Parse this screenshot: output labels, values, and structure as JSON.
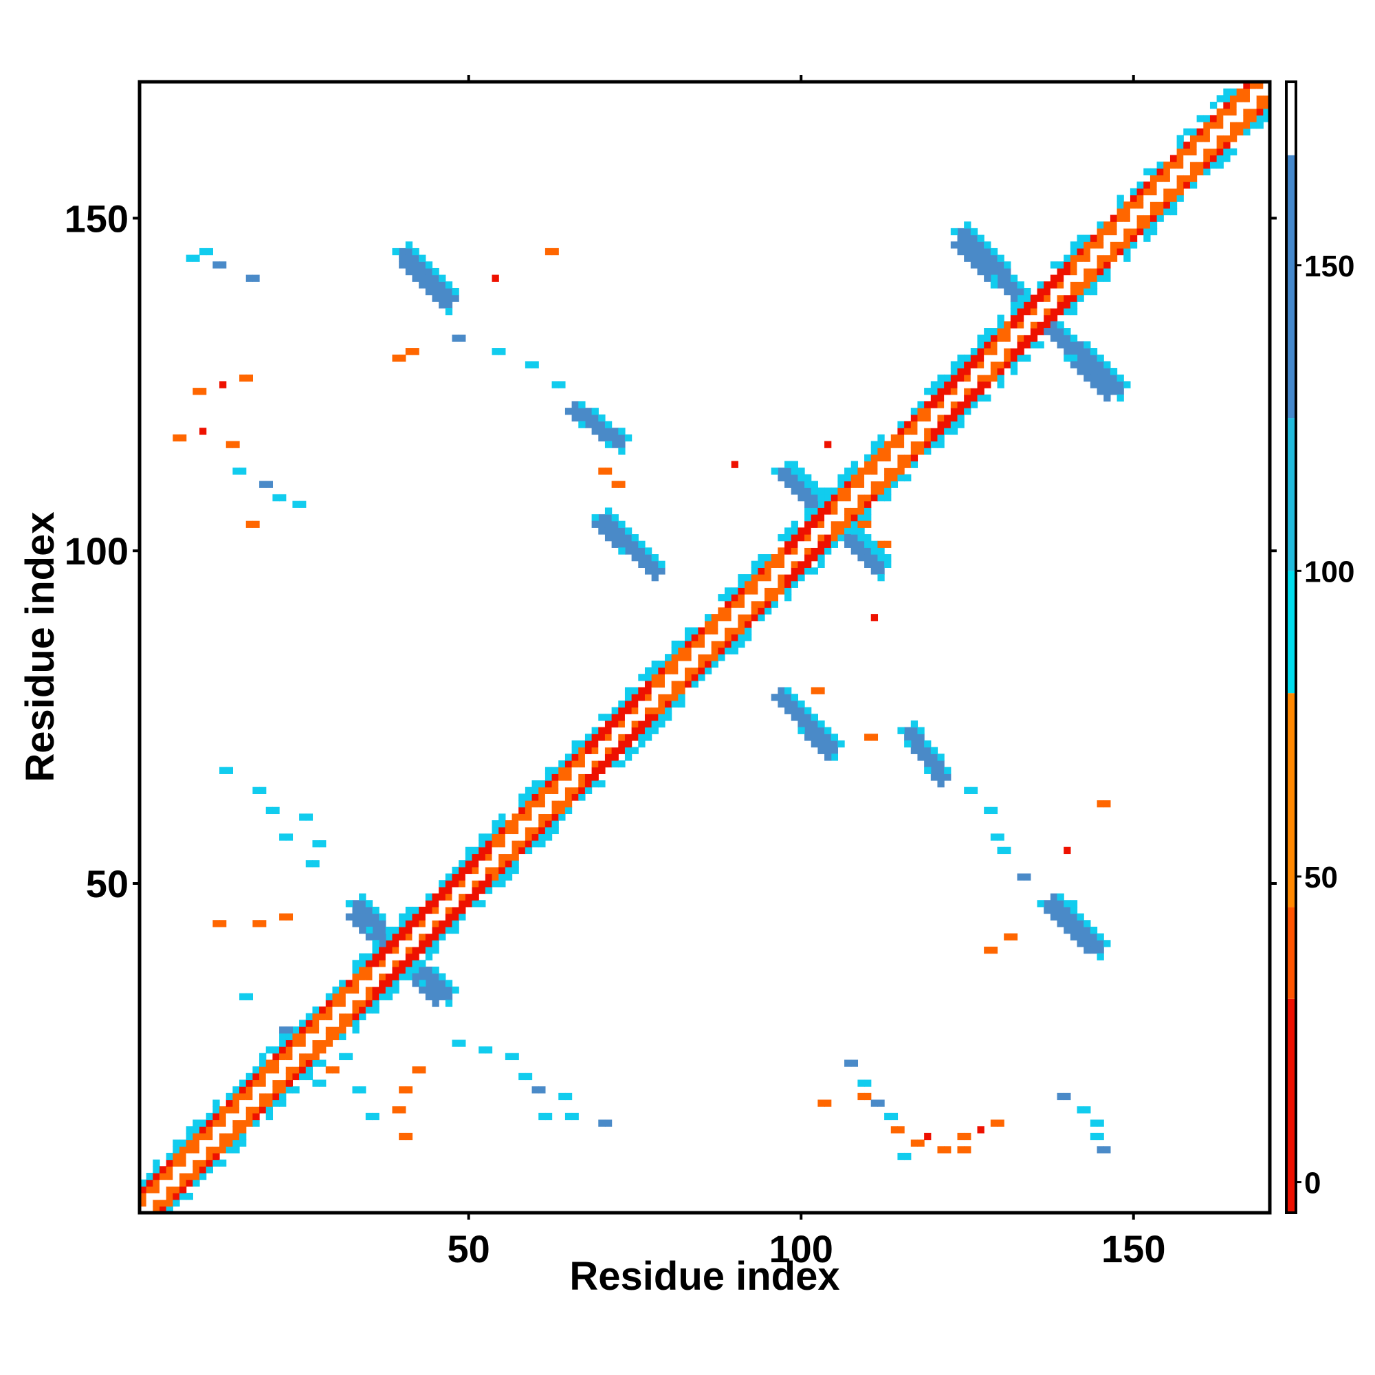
{
  "chart_data": {
    "type": "heatmap",
    "title": "",
    "xlabel": "Residue index",
    "ylabel": "Residue index",
    "xlim": [
      1,
      170
    ],
    "ylim": [
      1,
      170
    ],
    "x_ticks": [
      "50",
      "100",
      "150"
    ],
    "y_ticks": [
      "50",
      "100",
      "150"
    ],
    "colorbar": {
      "ticks": [
        "0",
        "50",
        "100",
        "150"
      ],
      "range": [
        -5,
        180
      ],
      "bands": [
        {
          "from": -5,
          "to": 30,
          "color": "#ee1100"
        },
        {
          "from": 30,
          "to": 45,
          "color": "#ff5500"
        },
        {
          "from": 45,
          "to": 80,
          "color": "#ff8800"
        },
        {
          "from": 80,
          "to": 100,
          "color": "#00ddee"
        },
        {
          "from": 100,
          "to": 125,
          "color": "#22bbdd"
        },
        {
          "from": 125,
          "to": 168,
          "color": "#4488cc"
        },
        {
          "from": 168,
          "to": 180,
          "color": "#ffffff"
        }
      ]
    },
    "palette": {
      "red": "#ee1100",
      "orange": "#ff6600",
      "cyan": "#11ccee",
      "blue": "#4a8ac8"
    },
    "features": [
      {
        "kind": "diagonal",
        "from": 1,
        "to": 170,
        "description": "main diagonal contact band (self contacts)"
      },
      {
        "kind": "segment",
        "x1": 33,
        "y1": 47,
        "x2": 45,
        "y2": 33,
        "value": 150,
        "label": "antiparallel contact"
      },
      {
        "kind": "segment",
        "x1": 40,
        "y1": 145,
        "x2": 47,
        "y2": 138,
        "value": 150
      },
      {
        "kind": "segment",
        "x1": 70,
        "y1": 105,
        "x2": 78,
        "y2": 97,
        "value": 150
      },
      {
        "kind": "segment",
        "x1": 97,
        "y1": 112,
        "x2": 112,
        "y2": 98,
        "value": 150
      },
      {
        "kind": "segment",
        "x1": 124,
        "y1": 148,
        "x2": 146,
        "y2": 124,
        "value": 150
      },
      {
        "kind": "segment",
        "x1": 97,
        "y1": 78,
        "x2": 104,
        "y2": 70,
        "value": 150
      },
      {
        "kind": "segment",
        "x1": 137,
        "y1": 47,
        "x2": 143,
        "y2": 41,
        "value": 150
      },
      {
        "kind": "segment",
        "x1": 116,
        "y1": 73,
        "x2": 121,
        "y2": 66,
        "value": 150
      }
    ]
  }
}
